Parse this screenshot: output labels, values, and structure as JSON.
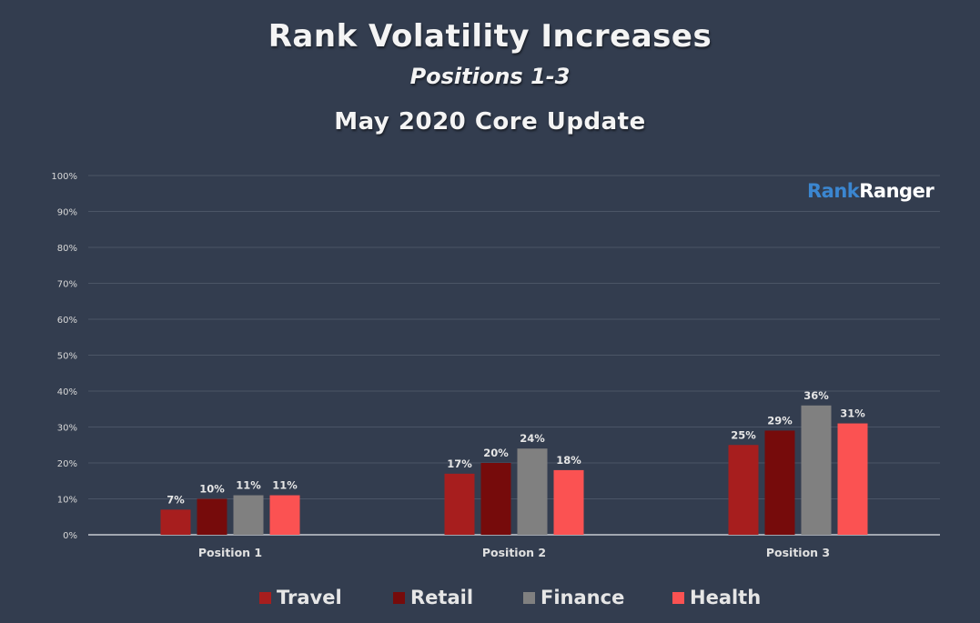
{
  "header": {
    "title": "Rank Volatility Increases",
    "subtitle": "Positions 1-3",
    "subtitle2": "May 2020 Core Update"
  },
  "logo": {
    "part1": "Rank",
    "part2": "Ranger",
    "part1_color": "#3b86d0",
    "part2_color": "#ffffff"
  },
  "chart_data": {
    "type": "bar",
    "title": "Rank Volatility Increases",
    "subtitle": "Positions 1-3 — May 2020 Core Update",
    "xlabel": "",
    "ylabel": "",
    "categories": [
      "Position 1",
      "Position 2",
      "Position 3"
    ],
    "series": [
      {
        "name": "Travel",
        "color": "#a71e1e",
        "values": [
          7,
          17,
          25
        ]
      },
      {
        "name": "Retail",
        "color": "#760b0b",
        "values": [
          10,
          20,
          29
        ]
      },
      {
        "name": "Finance",
        "color": "#808080",
        "values": [
          11,
          24,
          36
        ]
      },
      {
        "name": "Health",
        "color": "#fb5252",
        "values": [
          11,
          18,
          31
        ]
      }
    ],
    "data_labels": [
      [
        "7%",
        "17%",
        "25%"
      ],
      [
        "10%",
        "20%",
        "29%"
      ],
      [
        "11%",
        "24%",
        "36%"
      ],
      [
        "11%",
        "18%",
        "31%"
      ]
    ],
    "ylim": [
      0,
      100
    ],
    "yticks": [
      0,
      10,
      20,
      30,
      40,
      50,
      60,
      70,
      80,
      90,
      100
    ],
    "ytick_labels": [
      "0%",
      "10%",
      "20%",
      "30%",
      "40%",
      "50%",
      "60%",
      "70%",
      "80%",
      "90%",
      "100%"
    ],
    "grid": true,
    "legend_position": "bottom"
  }
}
